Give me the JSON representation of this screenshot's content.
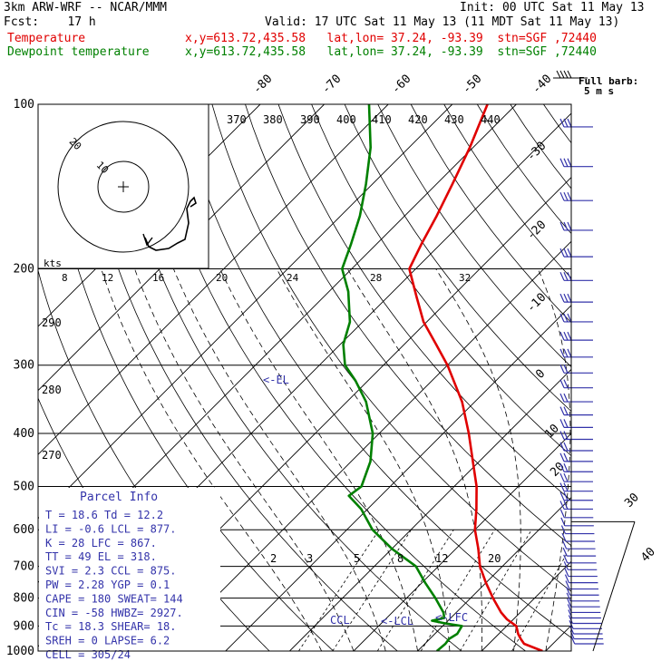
{
  "header": {
    "model": "3km ARW-WRF -- NCAR/MMM",
    "init": "Init: 00 UTC Sat 11 May 13",
    "fcst": "Fcst:    17 h",
    "valid": "Valid: 17 UTC Sat 11 May 13 (11 MDT Sat 11 May 13)",
    "temp_label": "Temperature",
    "dew_label": "Dewpoint temperature",
    "temp_loc": "x,y=613.72,435.58   lat,lon= 37.24, -93.39  stn=SGF ,72440",
    "dew_loc": "x,y=613.72,435.58   lat,lon= 37.24, -93.39  stn=SGF ,72440"
  },
  "colors": {
    "temperature": "#e00000",
    "dewpoint": "#008000",
    "barbs": "#3333aa",
    "hodograph": "#000000",
    "ink": "#000000"
  },
  "chart_data": {
    "type": "line",
    "title": "",
    "pressure_axis": {
      "ylim": [
        1000,
        100
      ],
      "scale": "log",
      "ticks": [
        100,
        200,
        300,
        400,
        500,
        600,
        700,
        800,
        900,
        1000
      ]
    },
    "isotherm_top_labels": [
      "-80",
      "-70",
      "-60",
      "-50",
      "-40"
    ],
    "isotherm_right_labels": [
      "-30",
      "-20",
      "-10",
      "0",
      "10",
      "20",
      "30",
      "40"
    ],
    "theta_labels": [
      "370",
      "380",
      "390",
      "400",
      "410",
      "420",
      "430",
      "440"
    ],
    "theta_left_labels": [
      "290",
      "280",
      "270"
    ],
    "mixing_ratio_labels": [
      "2",
      "3",
      "5",
      "8",
      "12",
      "20"
    ],
    "hodo_speed_labels": [
      "8",
      "12",
      "16",
      "20",
      "24",
      "28",
      "32"
    ],
    "hodo_units": "kts",
    "hodo_rings": [
      "20",
      "10"
    ],
    "barb_legend": [
      "Full barb:",
      "5 m s"
    ],
    "markers": {
      "el": "<-EL",
      "ccl": "CCL",
      "lcl": "<-LCL",
      "lfc": "<-LFC"
    },
    "series": [
      {
        "name": "Temperature",
        "points": [
          [
            1000,
            29.5
          ],
          [
            970,
            25.5
          ],
          [
            950,
            24.2
          ],
          [
            930,
            23.0
          ],
          [
            900,
            21.5
          ],
          [
            875,
            19.0
          ],
          [
            850,
            17.0
          ],
          [
            800,
            13.5
          ],
          [
            750,
            10.0
          ],
          [
            700,
            6.5
          ],
          [
            650,
            3.5
          ],
          [
            600,
            0.0
          ],
          [
            550,
            -3.0
          ],
          [
            500,
            -6.5
          ],
          [
            450,
            -11.0
          ],
          [
            400,
            -16.0
          ],
          [
            350,
            -22.0
          ],
          [
            300,
            -30.0
          ],
          [
            275,
            -35.0
          ],
          [
            250,
            -40.5
          ],
          [
            225,
            -45.5
          ],
          [
            200,
            -51.0
          ],
          [
            180,
            -53.0
          ],
          [
            160,
            -55.0
          ],
          [
            140,
            -57.5
          ],
          [
            120,
            -60.5
          ],
          [
            100,
            -64.5
          ]
        ]
      },
      {
        "name": "Dewpoint temperature",
        "points": [
          [
            1000,
            13.0
          ],
          [
            970,
            13.2
          ],
          [
            950,
            13.0
          ],
          [
            930,
            13.5
          ],
          [
            900,
            13.0
          ],
          [
            890,
            10.0
          ],
          [
            880,
            7.5
          ],
          [
            870,
            9.0
          ],
          [
            850,
            8.0
          ],
          [
            800,
            4.5
          ],
          [
            750,
            0.5
          ],
          [
            700,
            -3.5
          ],
          [
            650,
            -10.0
          ],
          [
            600,
            -16.0
          ],
          [
            550,
            -21.0
          ],
          [
            520,
            -25.0
          ],
          [
            500,
            -24.5
          ],
          [
            450,
            -27.0
          ],
          [
            400,
            -31.0
          ],
          [
            350,
            -37.0
          ],
          [
            320,
            -42.0
          ],
          [
            300,
            -46.0
          ],
          [
            275,
            -49.5
          ],
          [
            250,
            -52.0
          ],
          [
            220,
            -57.0
          ],
          [
            200,
            -61.5
          ],
          [
            180,
            -64.0
          ],
          [
            160,
            -67.0
          ],
          [
            140,
            -71.0
          ],
          [
            120,
            -76.0
          ],
          [
            100,
            -83.0
          ]
        ]
      }
    ]
  },
  "parcel_info": {
    "title": "Parcel Info",
    "rows": [
      "T  =   18.6 Td =  12.2",
      "LI =   -0.6 LCL =  877.",
      "K  =     28 LFC =  867.",
      "TT =     49 EL  =  318.",
      "SVI =   2.3 CCL =  875.",
      "PW =   2.28 YGP =   0.1",
      "CAPE =   180 SWEAT=  144",
      "CIN =   -58 HWBZ= 2927.",
      "Tc =   18.3 SHEAR=  18.",
      "SREH =    0 LAPSE=  6.2",
      "CELL = 305/24"
    ]
  }
}
